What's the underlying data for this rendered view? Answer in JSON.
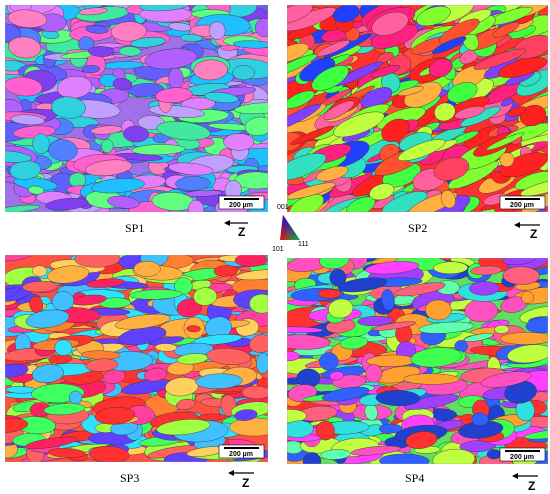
{
  "panels": [
    {
      "label": "SP1",
      "scale_bar": "200 µm",
      "axis": "Z"
    },
    {
      "label": "SP2",
      "scale_bar": "200 µm",
      "axis": "Z"
    },
    {
      "label": "SP3",
      "scale_bar": "200 µm",
      "axis": "Z"
    },
    {
      "label": "SP4",
      "scale_bar": "200 µm",
      "axis": "Z"
    }
  ],
  "legend": {
    "labels": [
      "001",
      "101",
      "111"
    ]
  }
}
